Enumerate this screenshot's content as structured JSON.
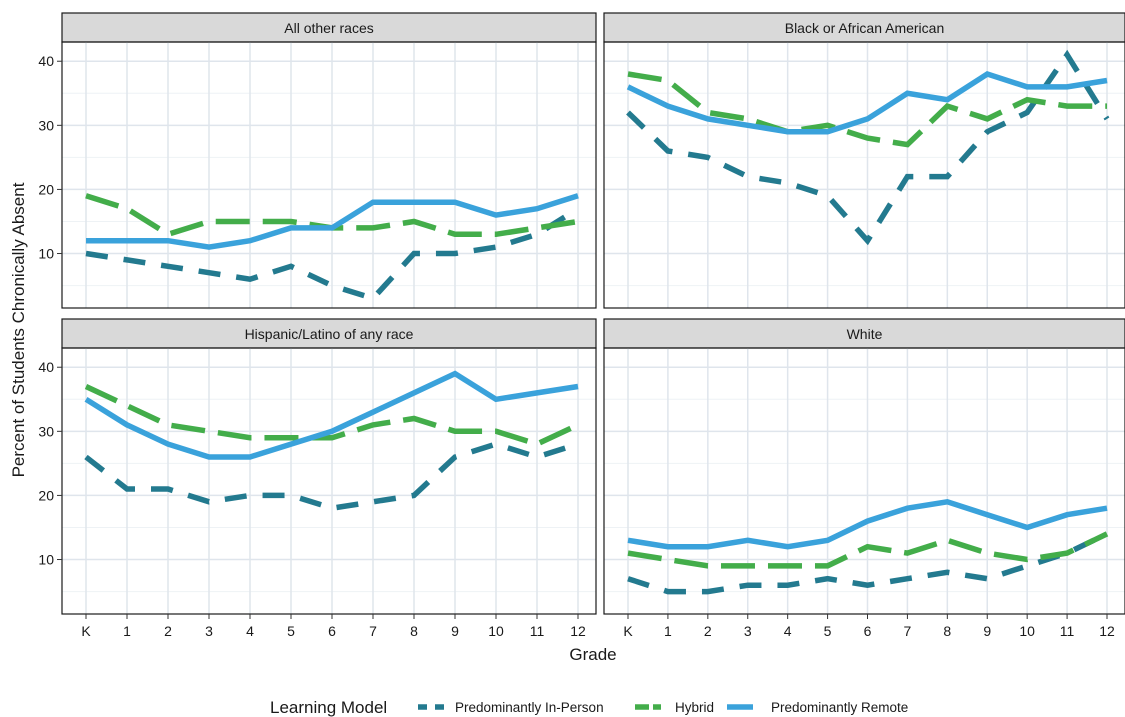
{
  "chart_data": {
    "type": "line",
    "xlabel": "Grade",
    "ylabel": "Percent of Students Chronically Absent",
    "categories": [
      "K",
      "1",
      "2",
      "3",
      "4",
      "5",
      "6",
      "7",
      "8",
      "9",
      "10",
      "11",
      "12"
    ],
    "yticks": [
      10,
      20,
      30,
      40
    ],
    "ylim": [
      1.5,
      43
    ],
    "grid": true,
    "legend": {
      "title": "Learning Model",
      "position": "bottom",
      "entries": [
        "Predominantly In-Person",
        "Hybrid",
        "Predominantly Remote"
      ]
    },
    "colors": {
      "Predominantly In-Person": "#237a8f",
      "Hybrid": "#43ad4a",
      "Predominantly Remote": "#3aa2db"
    },
    "facets": [
      {
        "title": "All other races",
        "series": [
          {
            "name": "Predominantly In-Person",
            "values": [
              10,
              9,
              8,
              7,
              6,
              8,
              5,
              3,
              10,
              10,
              11,
              13,
              17
            ]
          },
          {
            "name": "Hybrid",
            "values": [
              19,
              17,
              13,
              15,
              15,
              15,
              14,
              14,
              15,
              13,
              13,
              14,
              15
            ]
          },
          {
            "name": "Predominantly Remote",
            "values": [
              12,
              12,
              12,
              11,
              12,
              14,
              14,
              18,
              18,
              18,
              16,
              17,
              19
            ]
          }
        ]
      },
      {
        "title": "Black or African American",
        "series": [
          {
            "name": "Predominantly In-Person",
            "values": [
              32,
              26,
              25,
              22,
              21,
              19,
              12,
              22,
              22,
              29,
              32,
              41,
              31
            ]
          },
          {
            "name": "Hybrid",
            "values": [
              38,
              37,
              32,
              31,
              29,
              30,
              28,
              27,
              33,
              31,
              34,
              33,
              33
            ]
          },
          {
            "name": "Predominantly Remote",
            "values": [
              36,
              33,
              31,
              30,
              29,
              29,
              31,
              35,
              34,
              38,
              36,
              36,
              37
            ]
          }
        ]
      },
      {
        "title": "Hispanic/Latino of any race",
        "series": [
          {
            "name": "Predominantly In-Person",
            "values": [
              26,
              21,
              21,
              19,
              20,
              20,
              18,
              19,
              20,
              26,
              28,
              26,
              28
            ]
          },
          {
            "name": "Hybrid",
            "values": [
              37,
              34,
              31,
              30,
              29,
              29,
              29,
              31,
              32,
              30,
              30,
              28,
              31
            ]
          },
          {
            "name": "Predominantly Remote",
            "values": [
              35,
              31,
              28,
              26,
              26,
              28,
              30,
              33,
              36,
              39,
              35,
              36,
              37
            ]
          }
        ]
      },
      {
        "title": "White",
        "series": [
          {
            "name": "Predominantly In-Person",
            "values": [
              7,
              5,
              5,
              6,
              6,
              7,
              6,
              7,
              8,
              7,
              9,
              11,
              14
            ]
          },
          {
            "name": "Hybrid",
            "values": [
              11,
              10,
              9,
              9,
              9,
              9,
              12,
              11,
              13,
              11,
              10,
              11,
              14
            ]
          },
          {
            "name": "Predominantly Remote",
            "values": [
              13,
              12,
              12,
              13,
              12,
              13,
              16,
              18,
              19,
              17,
              15,
              17,
              18
            ]
          }
        ]
      }
    ]
  }
}
